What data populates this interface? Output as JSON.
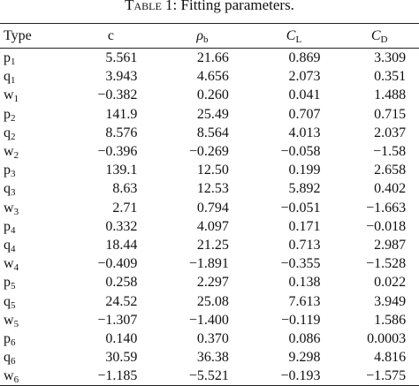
{
  "caption": {
    "label": "Table 1",
    "text": "Fitting parameters."
  },
  "columns": {
    "type": "Type",
    "c": "c",
    "rho_main": "ρ",
    "rho_sub": "b",
    "cl_main": "C",
    "cl_sub": "L",
    "cd_main": "C",
    "cd_sub": "D"
  },
  "rows": [
    {
      "base": "p",
      "sub": "1",
      "c": "5.561",
      "rho": "21.66",
      "cl": "0.869",
      "cd": "3.309"
    },
    {
      "base": "q",
      "sub": "1",
      "c": "3.943",
      "rho": "4.656",
      "cl": "2.073",
      "cd": "0.351"
    },
    {
      "base": "w",
      "sub": "1",
      "c": "−0.382",
      "rho": "0.260",
      "cl": "0.041",
      "cd": "1.488"
    },
    {
      "base": "p",
      "sub": "2",
      "c": "141.9",
      "rho": "25.49",
      "cl": "0.707",
      "cd": "0.715"
    },
    {
      "base": "q",
      "sub": "2",
      "c": "8.576",
      "rho": "8.564",
      "cl": "4.013",
      "cd": "2.037"
    },
    {
      "base": "w",
      "sub": "2",
      "c": "−0.396",
      "rho": "−0.269",
      "cl": "−0.058",
      "cd": "−1.58"
    },
    {
      "base": "p",
      "sub": "3",
      "c": "139.1",
      "rho": "12.50",
      "cl": "0.199",
      "cd": "2.658"
    },
    {
      "base": "q",
      "sub": "3",
      "c": "8.63",
      "rho": "12.53",
      "cl": "5.892",
      "cd": "0.402"
    },
    {
      "base": "w",
      "sub": "3",
      "c": "2.71",
      "rho": "0.794",
      "cl": "−0.051",
      "cd": "−1.663"
    },
    {
      "base": "p",
      "sub": "4",
      "c": "0.332",
      "rho": "4.097",
      "cl": "0.171",
      "cd": "−0.018"
    },
    {
      "base": "q",
      "sub": "4",
      "c": "18.44",
      "rho": "21.25",
      "cl": "0.713",
      "cd": "2.987"
    },
    {
      "base": "w",
      "sub": "4",
      "c": "−0.409",
      "rho": "−1.891",
      "cl": "−0.355",
      "cd": "−1.528"
    },
    {
      "base": "p",
      "sub": "5",
      "c": "0.258",
      "rho": "2.297",
      "cl": "0.138",
      "cd": "0.022"
    },
    {
      "base": "q",
      "sub": "5",
      "c": "24.52",
      "rho": "25.08",
      "cl": "7.613",
      "cd": "3.949"
    },
    {
      "base": "w",
      "sub": "5",
      "c": "−1.307",
      "rho": "−1.400",
      "cl": "−0.119",
      "cd": "1.586"
    },
    {
      "base": "p",
      "sub": "6",
      "c": "0.140",
      "rho": "0.370",
      "cl": "0.086",
      "cd": "0.0003"
    },
    {
      "base": "q",
      "sub": "6",
      "c": "30.59",
      "rho": "36.38",
      "cl": "9.298",
      "cd": "4.816"
    },
    {
      "base": "w",
      "sub": "6",
      "c": "−1.185",
      "rho": "−5.521",
      "cl": "−0.193",
      "cd": "−1.575"
    }
  ]
}
